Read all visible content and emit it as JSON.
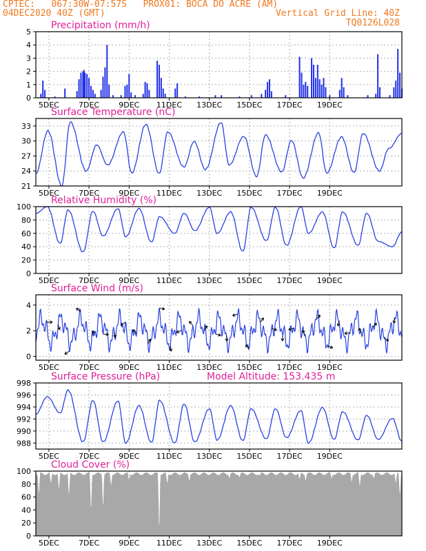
{
  "header": {
    "line1_left": "CPTEC:   067:30W-07:57S   PROX01: BOCA DO ACRE (AM)",
    "line2_left": "04DEC2020 40Z (GMT)",
    "line2_right": "Vertical Grid Line: 40Z",
    "line3_right": "TQ0126L028"
  },
  "colors": {
    "accent_header": "#f07820",
    "panel_title": "#e0209a",
    "series_line": "#2840e0",
    "precip_bar": "#2030e8",
    "cloud_fill": "#a8a8a8",
    "wind_arrow": "#000000",
    "grid": "#b0b0b0"
  },
  "x_axis": {
    "ticks": [
      "5DEC",
      "7DEC",
      "9DEC",
      "11DEC",
      "13DEC",
      "15DEC",
      "17DEC",
      "19DEC"
    ]
  },
  "chart_data": [
    {
      "type": "bar",
      "title": "Precipitation (mm/h)",
      "ylim": [
        0,
        5
      ],
      "yticks": [
        "0",
        "1",
        "2",
        "3",
        "4",
        "5"
      ],
      "grid": true,
      "x_unit": "days from 4DEC 00Z",
      "bars": [
        [
          1.1,
          0.3
        ],
        [
          1.2,
          1.3
        ],
        [
          1.3,
          0.6
        ],
        [
          1.8,
          0.1
        ],
        [
          2.3,
          0.7
        ],
        [
          2.9,
          0.5
        ],
        [
          3.0,
          1.4
        ],
        [
          3.1,
          1.9
        ],
        [
          3.2,
          2.0
        ],
        [
          3.25,
          2.1
        ],
        [
          3.3,
          1.9
        ],
        [
          3.4,
          1.8
        ],
        [
          3.5,
          1.5
        ],
        [
          3.6,
          0.9
        ],
        [
          3.7,
          0.6
        ],
        [
          3.8,
          0.3
        ],
        [
          4.1,
          0.6
        ],
        [
          4.2,
          1.6
        ],
        [
          4.3,
          2.3
        ],
        [
          4.4,
          4.0
        ],
        [
          4.5,
          1.0
        ],
        [
          4.7,
          0.2
        ],
        [
          5.1,
          0.2
        ],
        [
          5.3,
          0.9
        ],
        [
          5.4,
          1.0
        ],
        [
          5.5,
          1.8
        ],
        [
          5.6,
          0.4
        ],
        [
          5.8,
          0.2
        ],
        [
          6.2,
          0.3
        ],
        [
          6.3,
          1.2
        ],
        [
          6.4,
          1.1
        ],
        [
          6.5,
          0.6
        ],
        [
          6.9,
          2.8
        ],
        [
          7.0,
          2.5
        ],
        [
          7.1,
          1.5
        ],
        [
          7.2,
          0.7
        ],
        [
          7.3,
          0.3
        ],
        [
          7.8,
          0.7
        ],
        [
          7.9,
          1.1
        ],
        [
          8.3,
          0.1
        ],
        [
          9.0,
          0.1
        ],
        [
          9.8,
          0.2
        ],
        [
          10.1,
          0.2
        ],
        [
          11.0,
          0.1
        ],
        [
          11.6,
          0.2
        ],
        [
          12.1,
          0.3
        ],
        [
          12.3,
          0.6
        ],
        [
          12.4,
          1.2
        ],
        [
          12.5,
          1.4
        ],
        [
          12.6,
          0.5
        ],
        [
          13.3,
          0.2
        ],
        [
          14.0,
          3.1
        ],
        [
          14.1,
          1.9
        ],
        [
          14.2,
          1.0
        ],
        [
          14.3,
          1.2
        ],
        [
          14.4,
          0.9
        ],
        [
          14.6,
          3.0
        ],
        [
          14.7,
          2.5
        ],
        [
          14.8,
          1.5
        ],
        [
          14.9,
          2.5
        ],
        [
          15.0,
          1.4
        ],
        [
          15.1,
          1.0
        ],
        [
          15.2,
          1.5
        ],
        [
          15.3,
          0.8
        ],
        [
          15.5,
          0.2
        ],
        [
          16.0,
          0.6
        ],
        [
          16.1,
          1.5
        ],
        [
          16.2,
          0.8
        ],
        [
          16.4,
          0.2
        ],
        [
          17.4,
          0.2
        ],
        [
          17.8,
          0.3
        ],
        [
          17.9,
          3.3
        ],
        [
          18.0,
          0.8
        ],
        [
          18.5,
          0.2
        ],
        [
          18.7,
          0.8
        ],
        [
          18.8,
          1.3
        ],
        [
          18.9,
          3.7
        ],
        [
          19.0,
          1.9
        ],
        [
          19.1,
          0.7
        ]
      ]
    },
    {
      "type": "line",
      "title": "Surface Temperature (nC)",
      "ylim": [
        21,
        34.5
      ],
      "yticks": [
        "21",
        "24",
        "27",
        "30",
        "33"
      ],
      "grid": true,
      "peaks": [
        32.0,
        33.8,
        29.2,
        31.8,
        33.3,
        31.8,
        29.9,
        33.7,
        30.9,
        31.2,
        30.1,
        31.6,
        30.8,
        31.5
      ],
      "troughs": [
        21.0,
        24.0,
        25.2,
        23.6,
        23.5,
        24.8,
        24.3,
        25.2,
        22.9,
        23.8,
        22.6,
        23.6,
        23.7,
        24.0,
        28.5
      ]
    },
    {
      "type": "line",
      "title": "Relative Humidity (%)",
      "ylim": [
        0,
        100
      ],
      "yticks": [
        "0",
        "20",
        "40",
        "60",
        "80",
        "100"
      ],
      "grid": true,
      "peaks": [
        100,
        95,
        93,
        97,
        97,
        85,
        90,
        99,
        92,
        99,
        99,
        100,
        92,
        92,
        90
      ],
      "troughs": [
        45,
        32,
        56,
        55,
        47,
        60,
        64,
        60,
        33,
        49,
        42,
        60,
        38,
        42,
        48,
        40
      ]
    },
    {
      "type": "line",
      "title": "Surface Wind (m/s)",
      "ylim": [
        -0.3,
        4.8
      ],
      "yticks": [
        "0",
        "2",
        "4"
      ],
      "grid": true,
      "markers": "wind-direction arrows"
    },
    {
      "type": "line",
      "title": "Surface Pressure (hPa)",
      "annotation": "Model Altitude: 153.435 m",
      "ylim": [
        987,
        998
      ],
      "yticks": [
        "988",
        "990",
        "992",
        "994",
        "996",
        "998"
      ],
      "grid": true,
      "peaks": [
        995.7,
        996.8,
        995.1,
        995.0,
        994.2,
        995.1,
        994.5,
        993.7,
        994.2,
        993.7,
        993.7,
        993.4,
        993.9,
        993.2,
        992.6,
        992.1
      ],
      "troughs": [
        993.0,
        988.2,
        988.2,
        988.0,
        988.1,
        988.0,
        988.2,
        988.5,
        988.4,
        988.7,
        988.9,
        988.0,
        988.6,
        988.5,
        988.6
      ]
    },
    {
      "type": "area",
      "title": "Cloud Cover (%)",
      "ylim": [
        0,
        100
      ],
      "yticks": [
        "0",
        "20",
        "40",
        "60",
        "80",
        "100"
      ],
      "grid": true,
      "baseline_level": 96,
      "dips": [
        [
          1.0,
          62
        ],
        [
          1.6,
          80
        ],
        [
          2.0,
          70
        ],
        [
          2.5,
          60
        ],
        [
          3.6,
          35
        ],
        [
          4.2,
          40
        ],
        [
          4.6,
          76
        ],
        [
          5.5,
          85
        ],
        [
          7.0,
          2
        ],
        [
          7.4,
          80
        ],
        [
          8.5,
          84
        ],
        [
          10.5,
          88
        ],
        [
          11.0,
          90
        ],
        [
          12.0,
          93
        ],
        [
          14.0,
          87
        ],
        [
          14.3,
          84
        ],
        [
          15.6,
          88
        ],
        [
          16.6,
          82
        ],
        [
          17.0,
          75
        ],
        [
          17.7,
          88
        ],
        [
          18.8,
          80
        ],
        [
          19.0,
          60
        ]
      ]
    }
  ]
}
